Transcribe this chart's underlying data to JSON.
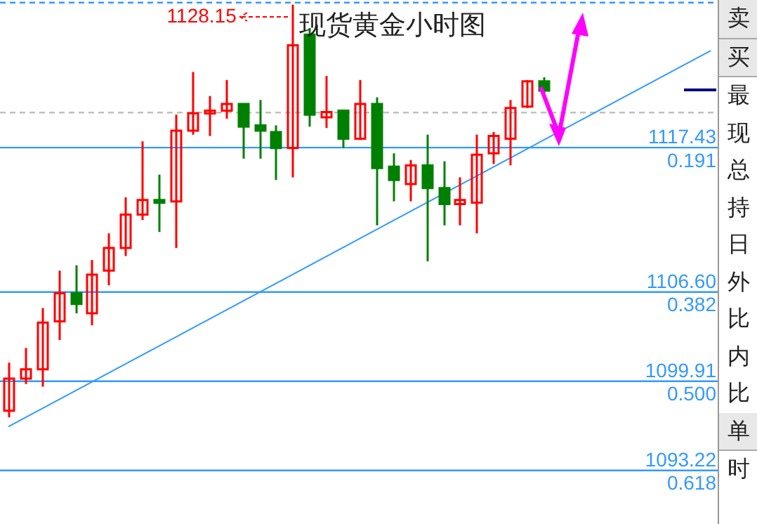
{
  "chart_data": {
    "type": "candlestick",
    "title": "现货黄金小时图",
    "categories": [
      null,
      null,
      null,
      null,
      null,
      null,
      null,
      null,
      null,
      null,
      null,
      null,
      null,
      null,
      null,
      null,
      null,
      null,
      null,
      null,
      null,
      null,
      null,
      null,
      null,
      null,
      null,
      null,
      null,
      null,
      null,
      null,
      null,
      null,
      null,
      null,
      null,
      null,
      null,
      null,
      null,
      null,
      null
    ],
    "series": [
      {
        "ohlc": [
          [
            1097.7,
            1101.3,
            1097.2,
            1100.1
          ],
          [
            1100.1,
            1102.4,
            1099.7,
            1100.8
          ],
          [
            1100.8,
            1105.4,
            1099.5,
            1104.3
          ],
          [
            1104.4,
            1108.2,
            1103.0,
            1106.5
          ],
          [
            1106.5,
            1108.6,
            1105.0,
            1105.7
          ],
          [
            1105.0,
            1109.0,
            1104.1,
            1107.9
          ],
          [
            1108.2,
            1111.0,
            1107.1,
            1109.9
          ],
          [
            1109.9,
            1113.7,
            1109.3,
            1112.4
          ],
          [
            1112.4,
            1117.9,
            1112.0,
            1113.5
          ],
          [
            1113.5,
            1115.4,
            1111.1,
            1113.3
          ],
          [
            1113.4,
            1119.9,
            1109.9,
            1118.7
          ],
          [
            1118.7,
            1123.1,
            1118.4,
            1120.0
          ],
          [
            1120.1,
            1121.3,
            1118.3,
            1120.2
          ],
          [
            1120.2,
            1122.5,
            1119.6,
            1120.7
          ],
          [
            1120.7,
            1120.7,
            1116.6,
            1119.0
          ],
          [
            1119.1,
            1121.0,
            1116.6,
            1118.7
          ],
          [
            1118.6,
            1119.1,
            1115.0,
            1117.4
          ],
          [
            1117.4,
            1128.15,
            1115.2,
            1125.1
          ],
          [
            1125.9,
            1126.4,
            1119.0,
            1119.9
          ],
          [
            1119.7,
            1122.8,
            1118.9,
            1120.1
          ],
          [
            1120.2,
            1120.2,
            1117.4,
            1118.1
          ],
          [
            1118.1,
            1122.5,
            1118.0,
            1120.7
          ],
          [
            1120.7,
            1121.2,
            1111.6,
            1115.9
          ],
          [
            1116.0,
            1117.0,
            1113.4,
            1115.0
          ],
          [
            1114.7,
            1116.5,
            1113.4,
            1116.1
          ],
          [
            1116.1,
            1118.4,
            1108.9,
            1114.4
          ],
          [
            1114.4,
            1116.4,
            1111.6,
            1113.2
          ],
          [
            1113.2,
            1115.2,
            1111.6,
            1113.5
          ],
          [
            1113.3,
            1118.4,
            1111.0,
            1116.9
          ],
          [
            1117.0,
            1118.6,
            1116.2,
            1118.3
          ],
          [
            1118.1,
            1121.0,
            1116.1,
            1120.4
          ],
          [
            1120.5,
            1122.5,
            1120.4,
            1122.4
          ],
          [
            1122.4,
            1122.7,
            1121.4,
            1121.7
          ],
          null,
          null,
          null,
          null,
          null,
          null,
          null,
          null,
          null,
          null
        ],
        "colors": [
          "#ff0000",
          "#ff0000",
          "#ff0000",
          "#ff0000",
          "#008000",
          "#ff0000",
          "#ff0000",
          "#ff0000",
          "#ff0000",
          "#008000",
          "#ff0000",
          "#ff0000",
          "#ff0000",
          "#ff0000",
          "#008000",
          "#008000",
          "#008000",
          "#ff0000",
          "#008000",
          "#ff0000",
          "#008000",
          "#ff0000",
          "#008000",
          "#008000",
          "#ff0000",
          "#008000",
          "#008000",
          "#ff0000",
          "#ff0000",
          "#ff0000",
          "#ff0000",
          "#ff0000",
          "#008000",
          null,
          null,
          null,
          null,
          null,
          null,
          null,
          null,
          null,
          null
        ]
      },
      {
        "type": "line",
        "color": "#3399ff",
        "values": [
          1096.5,
          null,
          null,
          null,
          null,
          null,
          null,
          null,
          null,
          null,
          null,
          null,
          null,
          null,
          null,
          null,
          null,
          null,
          null,
          null,
          null,
          null,
          null,
          null,
          null,
          null,
          null,
          null,
          null,
          null,
          null,
          null,
          null,
          null,
          null,
          null,
          null,
          null,
          null,
          null,
          null,
          null,
          1124.7
        ]
      }
    ],
    "ylim": [
      1089.2,
      1128.5
    ],
    "tick_labels": false,
    "ref_lines": [
      {
        "axis": "y",
        "value": 1117.43,
        "label": "1117.43",
        "color": "#3399ff"
      },
      {
        "axis": "y",
        "value": 1106.6,
        "label": "1106.60",
        "color": "#3399ff"
      },
      {
        "axis": "y",
        "value": 1099.91,
        "label": "1099.91",
        "color": "#3399ff"
      },
      {
        "axis": "y",
        "value": 1093.22,
        "label": "1093.22",
        "color": "#3399ff"
      },
      {
        "axis": "y",
        "value": 1120.06,
        "color": "#c0c0c0",
        "line_style": "dashed"
      },
      {
        "axis": "y",
        "value": 1128.3,
        "color": "#3399ff",
        "line_style": "dashed"
      }
    ],
    "annotations": [
      {
        "text": "0.191",
        "y": 1117.43
      },
      {
        "text": "0.382",
        "y": 1106.6
      },
      {
        "text": "0.500",
        "y": 1099.91
      },
      {
        "text": "0.618",
        "y": 1093.22
      },
      {
        "text": "1128.15",
        "y": 1128.15
      },
      "卖",
      "买",
      "最",
      "现",
      "总",
      "持",
      "日",
      "外",
      "比",
      "内",
      "比",
      "单",
      "时"
    ]
  }
}
